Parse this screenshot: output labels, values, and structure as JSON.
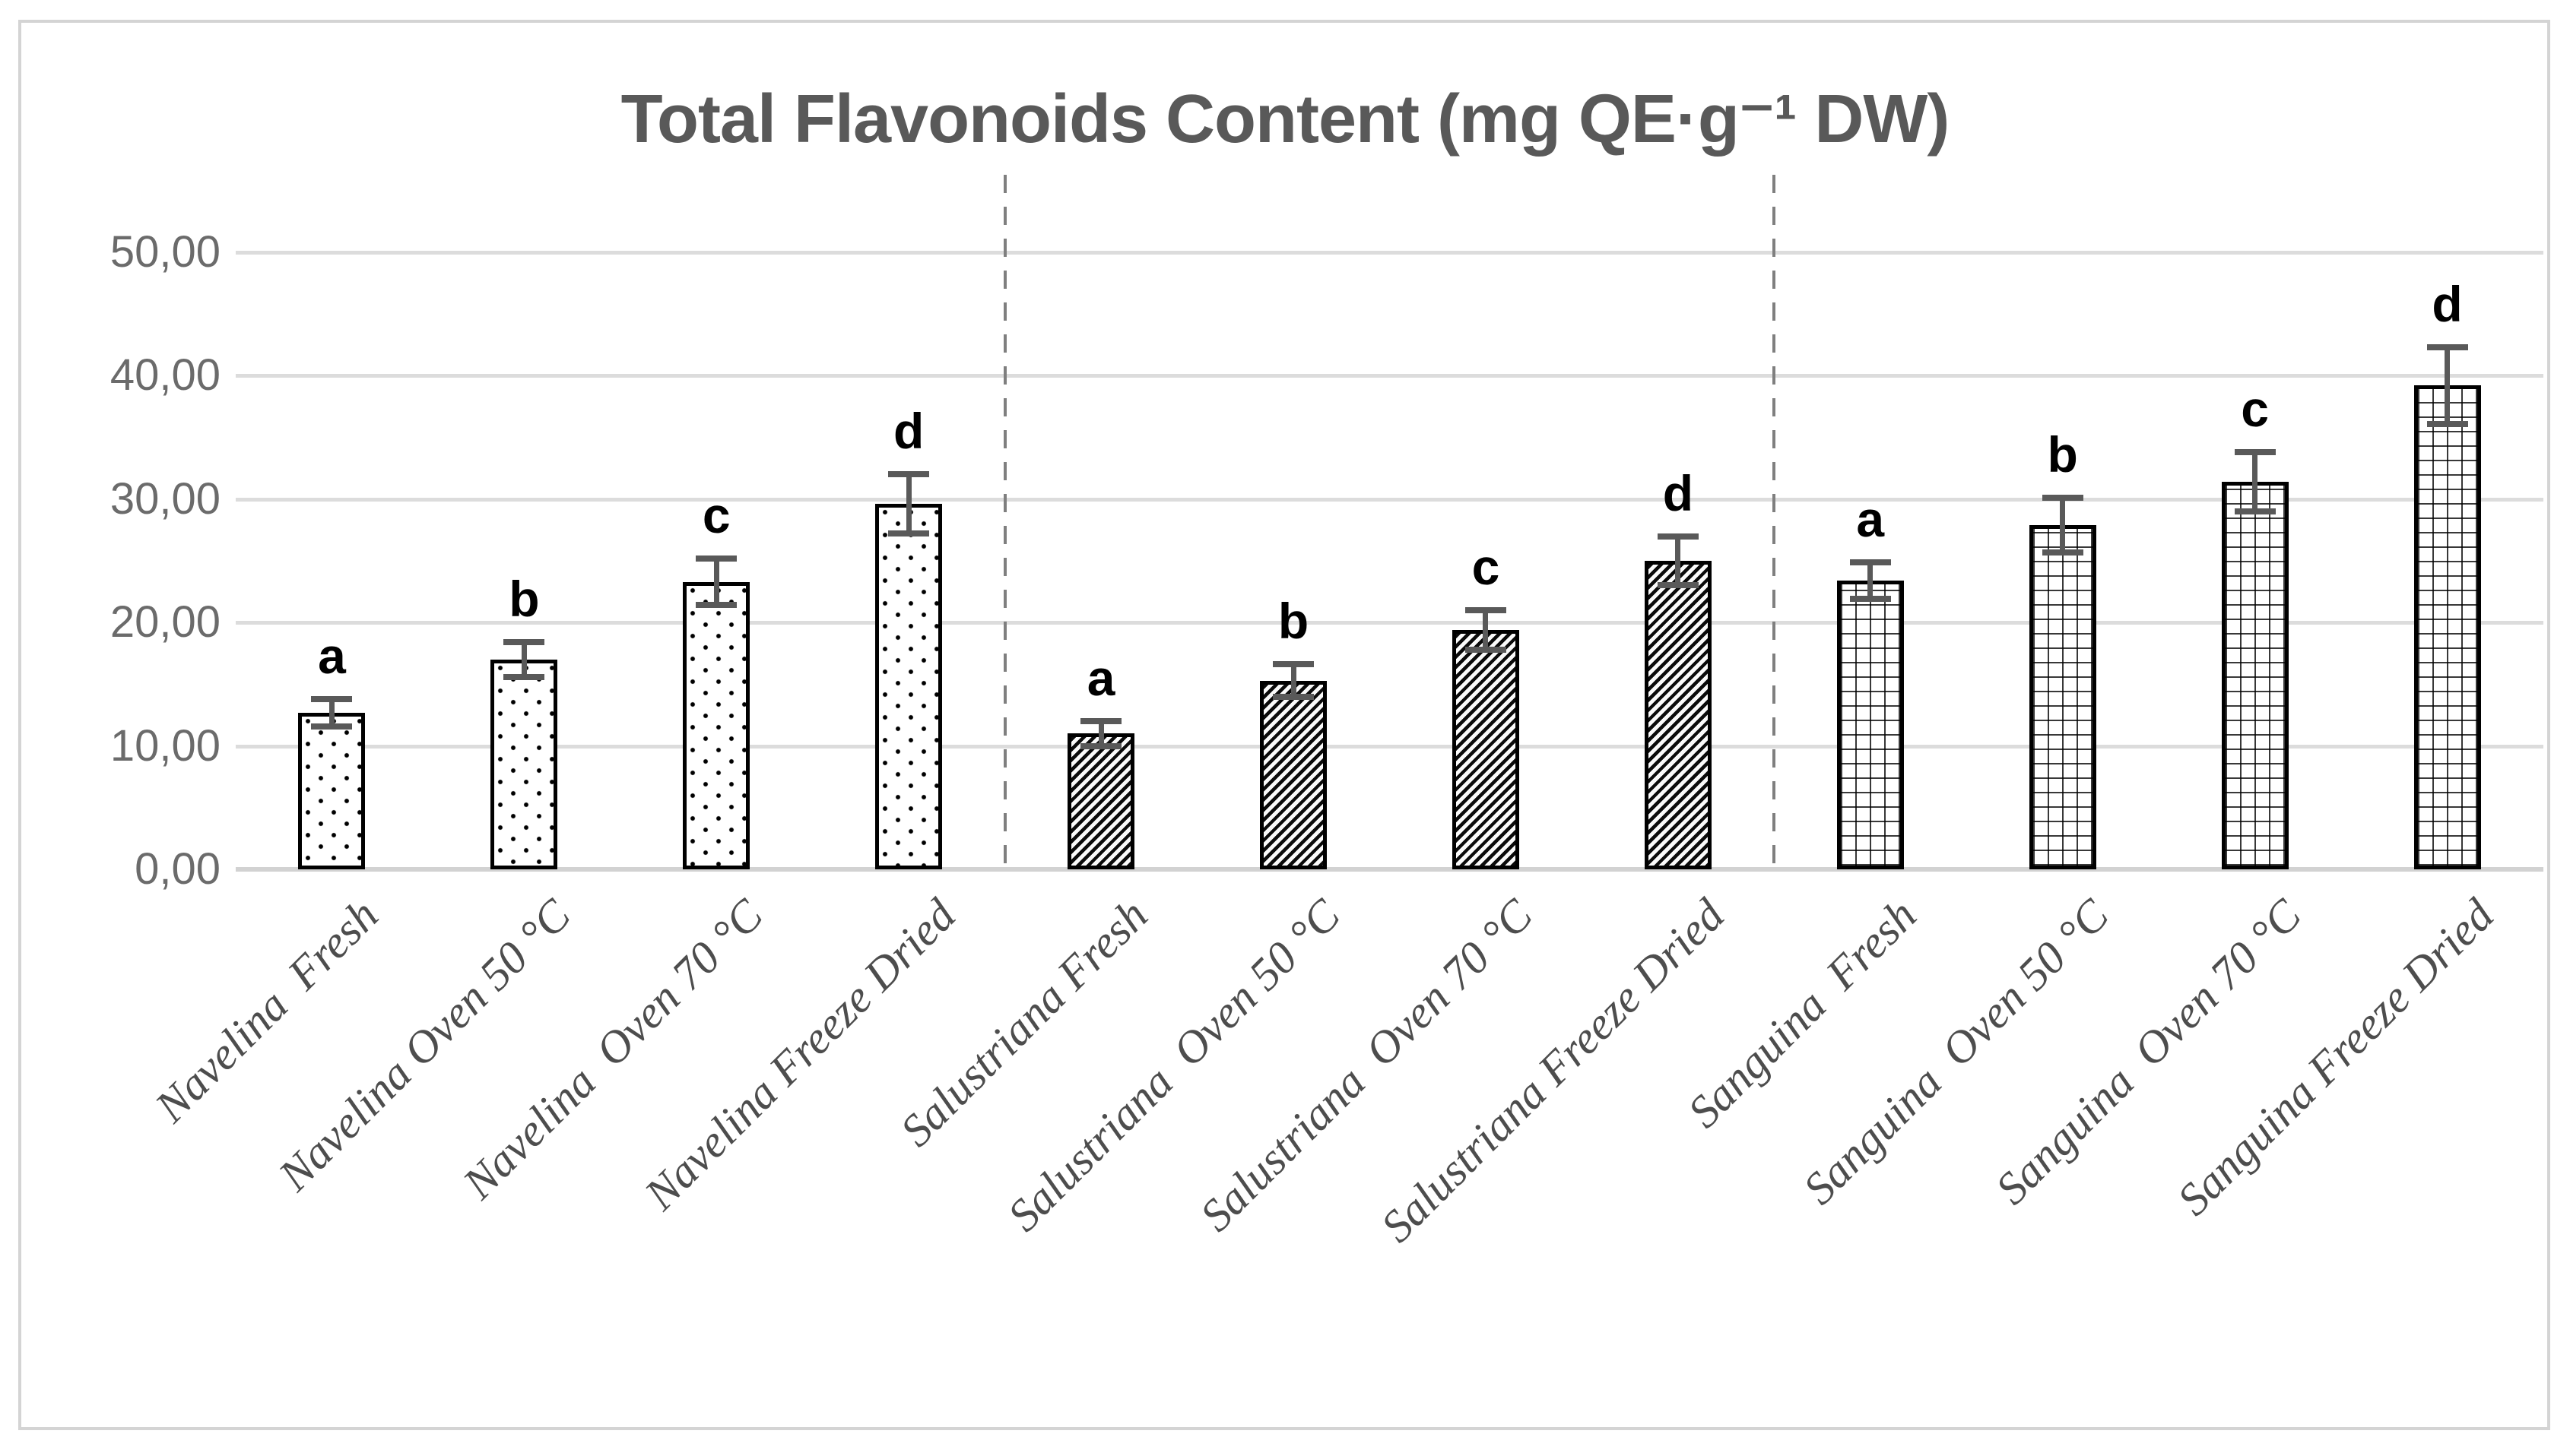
{
  "title": "Total Flavonoids Content (mg QE·g⁻¹ DW)",
  "y_axis": {
    "tick_labels": [
      "50,00",
      "40,00",
      "30,00",
      "20,00",
      "10,00",
      "0,00"
    ],
    "min": 0,
    "max": 50,
    "step": 10,
    "decimal_style": "comma"
  },
  "chart_data": {
    "type": "bar",
    "title": "Total Flavonoids Content (mg QE·g⁻¹ DW)",
    "xlabel": "",
    "ylabel": "",
    "ylim": [
      0,
      50
    ],
    "grid": "horizontal-only",
    "legend": "none",
    "categories": [
      "Navelina  Fresh",
      "Navelina Oven 50 °C",
      "Navelina  Oven 70 °C",
      "Navelina Freeze Dried",
      "Salustriana Fresh",
      "Salustriana  Oven 50 °C",
      "Salustriana  Oven 70 °C",
      "Salustriana Freeze Dried",
      "Sanguina  Fresh",
      "Sanguina  Oven 50 °C",
      "Sanguina  Oven 70 °C",
      "Sanguina Freeze Dried"
    ],
    "series": [
      {
        "name": "Total Flavonoids Content (mg QE·g⁻¹ DW)",
        "values": [
          12.7,
          17.0,
          23.3,
          29.6,
          11.0,
          15.3,
          19.4,
          25.0,
          23.4,
          27.9,
          31.4,
          39.2
        ]
      }
    ],
    "error_bars": [
      1.1,
      1.4,
      1.9,
      2.4,
      1.0,
      1.3,
      1.6,
      2.0,
      1.5,
      2.2,
      2.4,
      3.1
    ],
    "significance_letters": [
      "a",
      "b",
      "c",
      "d",
      "a",
      "b",
      "c",
      "d",
      "a",
      "b",
      "c",
      "d"
    ],
    "groups": [
      {
        "name": "Navelina",
        "pattern": "dots",
        "indices": [
          0,
          1,
          2,
          3
        ]
      },
      {
        "name": "Salustriana",
        "pattern": "diagonal-stripes",
        "indices": [
          4,
          5,
          6,
          7
        ]
      },
      {
        "name": "Sanguina",
        "pattern": "grid",
        "indices": [
          8,
          9,
          10,
          11
        ]
      }
    ],
    "separators_after_categories": [
      3,
      7
    ],
    "colors": {
      "bar_fill": "#ffffff",
      "bar_pattern": "#000000",
      "error_bar": "#595959",
      "gridline": "#dcdcdc",
      "separator": "#7f7f7f",
      "title_text": "#595959",
      "axis_text": "#6b6b6b",
      "category_text": "#4d4d4d",
      "frame_border": "#d4d4d4"
    }
  }
}
